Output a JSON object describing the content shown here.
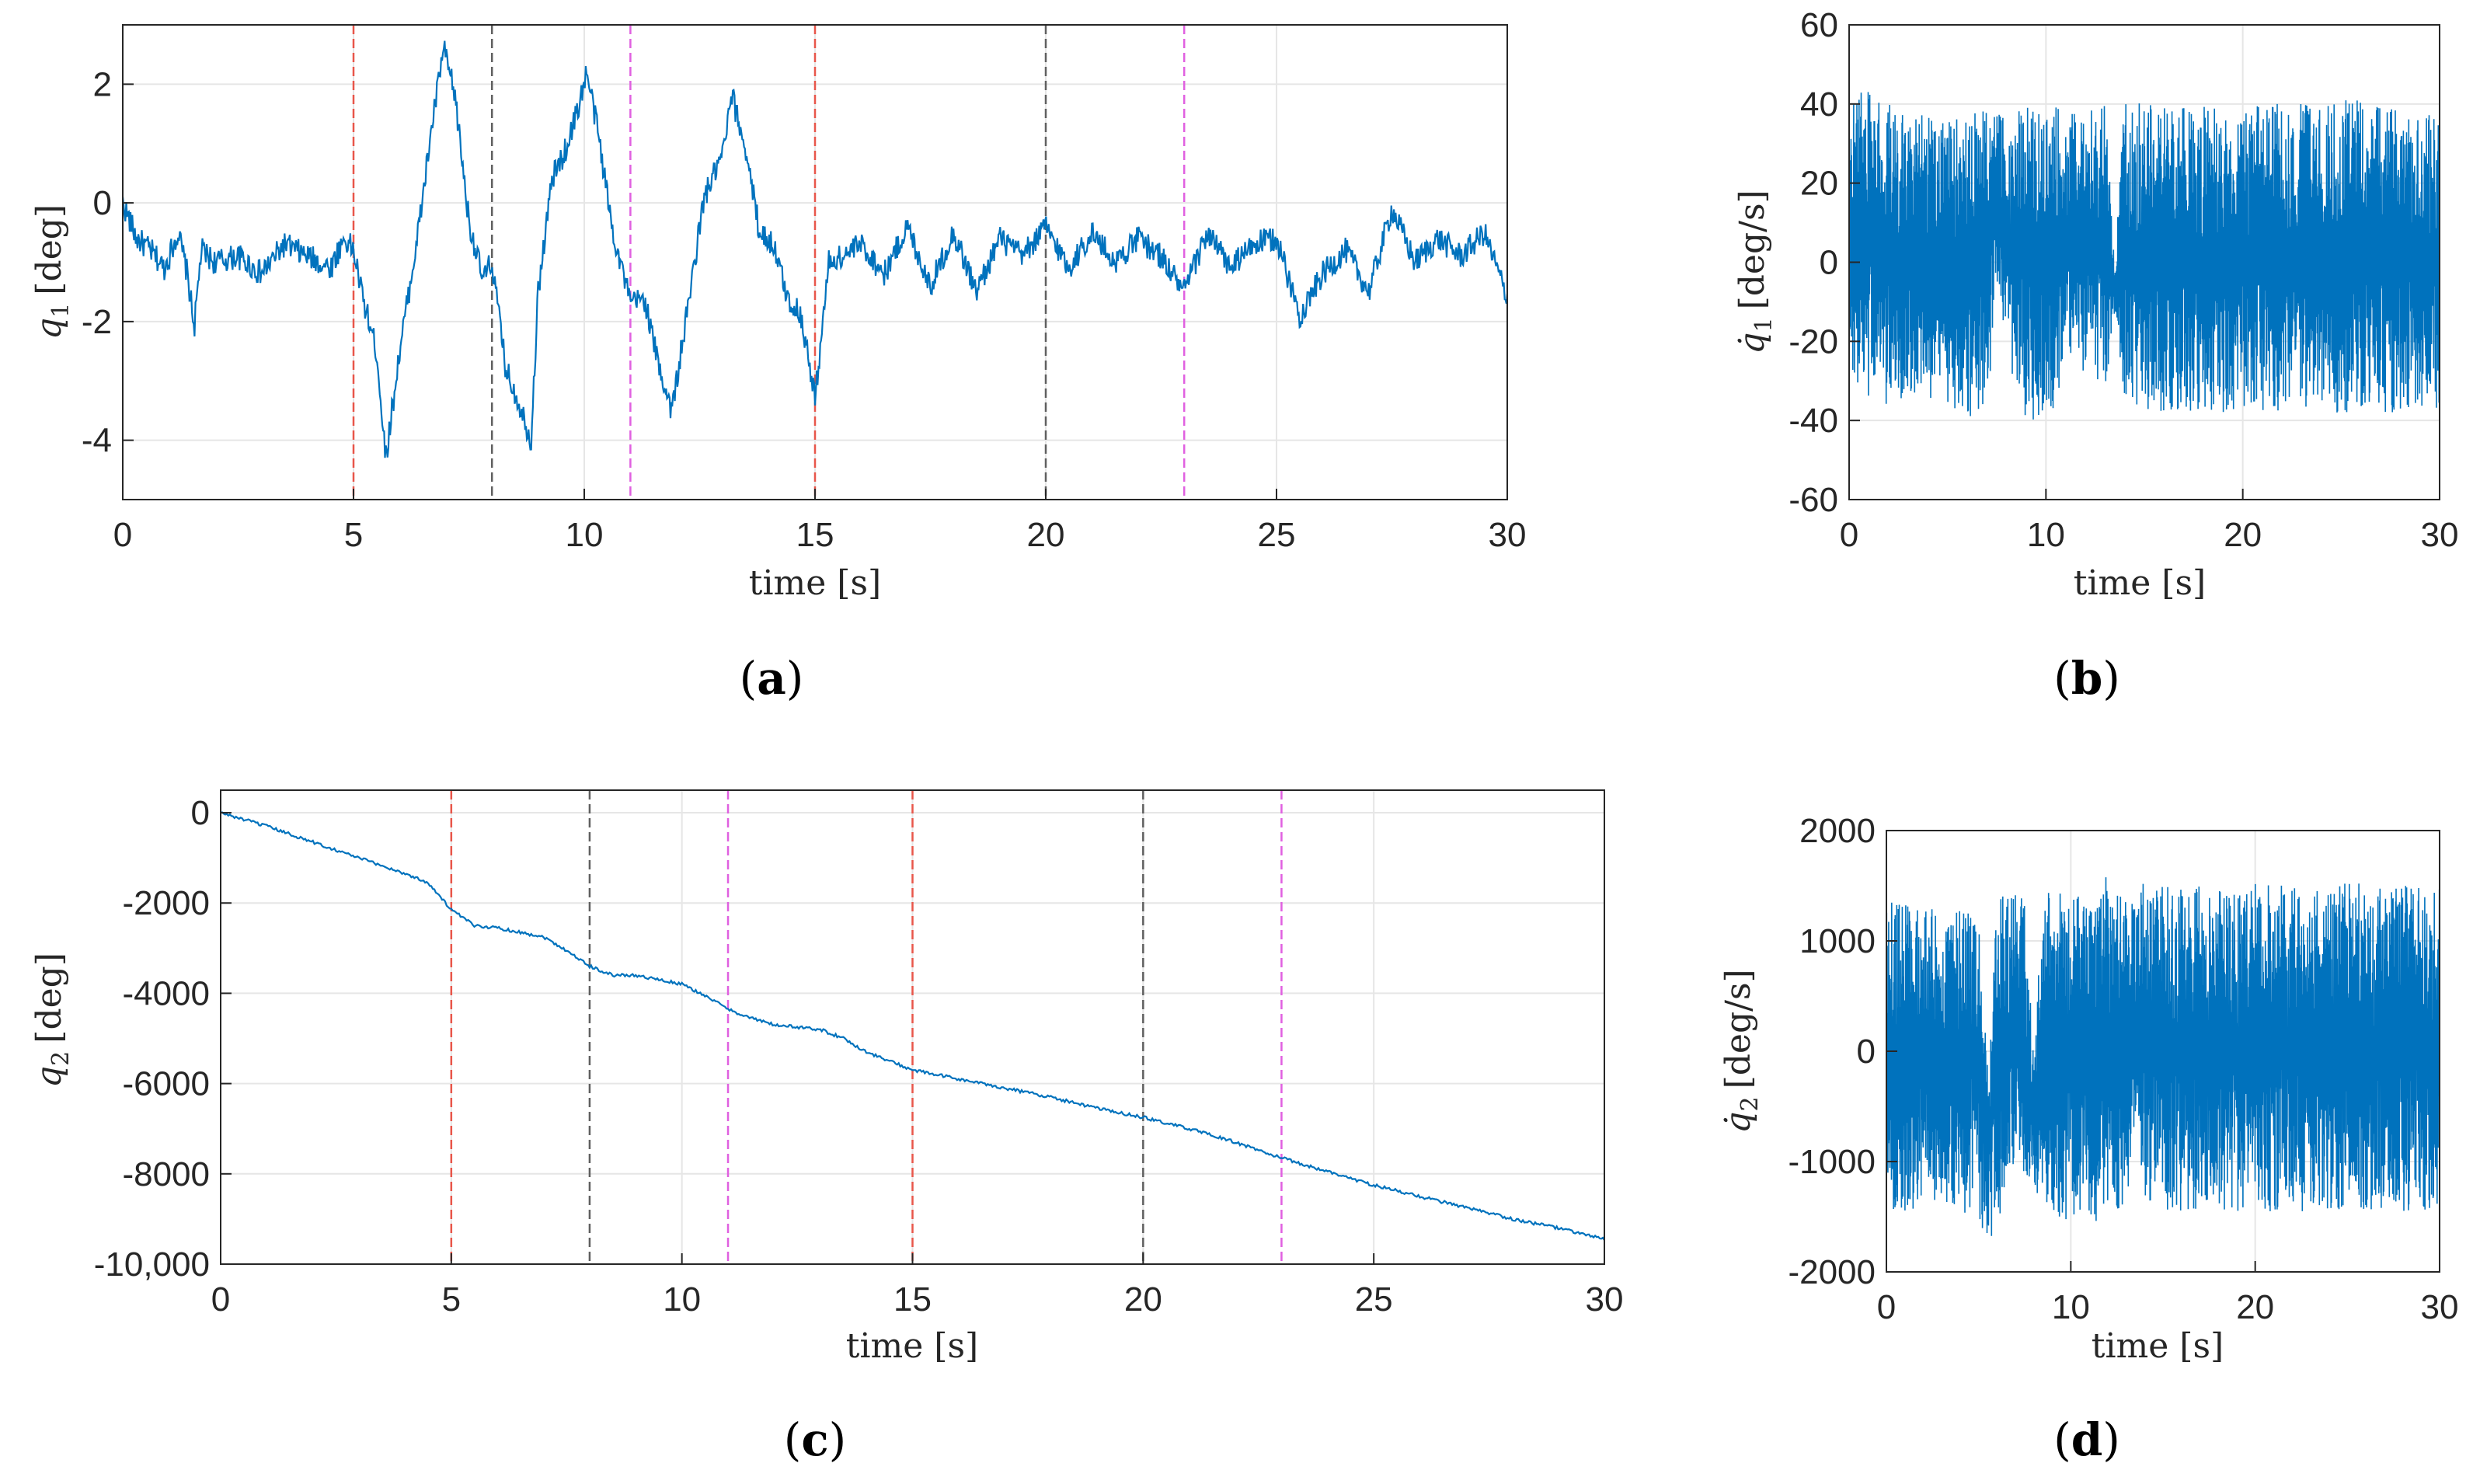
{
  "chart_data": [
    {
      "panel": "(a)",
      "panel_letter": "a",
      "type": "line",
      "xlabel": "time [s]",
      "ylabel": "q1 [deg]",
      "ylabel_main": "q",
      "ylabel_sub": "1",
      "ylabel_unit": "[deg]",
      "xlim": [
        0,
        30
      ],
      "ylim": [
        -5,
        3
      ],
      "xticks": [
        0,
        5,
        10,
        15,
        20,
        25,
        30
      ],
      "yticks": [
        -4,
        -2,
        0,
        2
      ],
      "ytick_labels": [
        "-4",
        "-2",
        "0",
        "2"
      ],
      "grid": true,
      "vlines": [
        {
          "x": 5,
          "color": "#e8564a"
        },
        {
          "x": 8,
          "color": "#606060"
        },
        {
          "x": 11,
          "color": "#e060e0"
        },
        {
          "x": 15,
          "color": "#e8564a"
        },
        {
          "x": 20,
          "color": "#606060"
        },
        {
          "x": 23,
          "color": "#e060e0"
        }
      ],
      "series": [
        {
          "color": "#0072bd",
          "x": [
            0,
            0.3,
            0.6,
            0.9,
            1.2,
            1.4,
            1.55,
            1.7,
            2.0,
            2.5,
            3.0,
            3.5,
            4.0,
            4.5,
            4.8,
            5.0,
            5.2,
            5.5,
            5.7,
            6.0,
            6.4,
            6.7,
            6.95,
            7.2,
            7.5,
            7.8,
            8.0,
            8.3,
            8.6,
            8.85,
            9.0,
            9.3,
            9.6,
            9.9,
            10.05,
            10.3,
            10.6,
            11.0,
            11.3,
            11.6,
            11.9,
            12.2,
            12.6,
            13.0,
            13.2,
            13.5,
            13.8,
            14.1,
            14.4,
            14.7,
            15.0,
            15.3,
            15.6,
            16.0,
            16.5,
            17.0,
            17.5,
            18.0,
            18.5,
            19.0,
            19.5,
            20.0,
            20.5,
            21.0,
            21.5,
            22.0,
            22.5,
            23.0,
            23.5,
            24.0,
            24.5,
            25.0,
            25.5,
            26.0,
            26.5,
            27.0,
            27.5,
            28.0,
            28.5,
            29.0,
            29.5,
            30.0
          ],
          "y": [
            0,
            -0.6,
            -0.8,
            -1.1,
            -0.5,
            -1.2,
            -2.1,
            -0.8,
            -1.0,
            -0.9,
            -1.2,
            -0.7,
            -0.9,
            -1.1,
            -0.6,
            -0.8,
            -1.6,
            -2.5,
            -4.3,
            -2.5,
            -0.5,
            1.3,
            2.6,
            1.8,
            -0.3,
            -1.3,
            -1.0,
            -2.8,
            -3.4,
            -4.0,
            -1.5,
            0.4,
            0.9,
            1.7,
            2.2,
            1.2,
            -0.4,
            -1.7,
            -1.6,
            -2.7,
            -3.5,
            -2.0,
            0.1,
            0.8,
            1.8,
            0.9,
            -0.5,
            -0.7,
            -1.6,
            -1.9,
            -3.3,
            -1.0,
            -0.9,
            -0.7,
            -1.2,
            -0.4,
            -1.4,
            -0.5,
            -1.5,
            -0.6,
            -0.9,
            -0.4,
            -1.1,
            -0.5,
            -1.0,
            -0.6,
            -0.9,
            -1.5,
            -0.5,
            -1.1,
            -0.7,
            -0.6,
            -1.9,
            -1.2,
            -0.8,
            -1.5,
            -0.1,
            -1.0,
            -0.6,
            -0.9,
            -0.5,
            -1.6
          ]
        }
      ]
    },
    {
      "panel": "(b)",
      "panel_letter": "b",
      "type": "line",
      "xlabel": "time [s]",
      "ylabel": "q̇1 [deg/s]",
      "ylabel_main": "q̇",
      "ylabel_sub": "1",
      "ylabel_unit": "[deg/s]",
      "xlim": [
        0,
        30
      ],
      "ylim": [
        -60,
        60
      ],
      "xticks": [
        0,
        10,
        20,
        30
      ],
      "yticks": [
        -60,
        -40,
        -20,
        0,
        20,
        40,
        60
      ],
      "ytick_labels": [
        "-60",
        "-40",
        "-20",
        "0",
        "20",
        "40",
        "60"
      ],
      "grid": true,
      "series": [
        {
          "color": "#0072bd",
          "envelope_x": [
            0,
            1,
            2,
            3,
            4,
            5,
            6,
            7,
            7.5,
            8,
            8.5,
            9,
            9.5,
            10,
            10.5,
            11,
            12,
            13,
            13.5,
            14,
            15,
            16,
            18,
            20,
            22,
            24,
            26,
            28,
            30
          ],
          "envelope_max": [
            40,
            45,
            42,
            38,
            37,
            36,
            38,
            40,
            38,
            36,
            38,
            40,
            38,
            36,
            40,
            38,
            38,
            40,
            0,
            42,
            40,
            40,
            40,
            40,
            40,
            40,
            42,
            38,
            38
          ],
          "envelope_min": [
            -33,
            -36,
            -36,
            -34,
            -34,
            -36,
            -40,
            -36,
            -15,
            -20,
            -35,
            -40,
            -42,
            -35,
            -38,
            -25,
            -28,
            -32,
            -15,
            -34,
            -38,
            -38,
            -38,
            -38,
            -38,
            -38,
            -38,
            -38,
            -38
          ]
        }
      ]
    },
    {
      "panel": "(c)",
      "panel_letter": "c",
      "type": "line",
      "xlabel": "time [s]",
      "ylabel": "q2 [deg]",
      "ylabel_main": "q",
      "ylabel_sub": "2",
      "ylabel_unit": "[deg]",
      "xlim": [
        0,
        30
      ],
      "ylim": [
        -10000,
        500
      ],
      "xticks": [
        0,
        5,
        10,
        15,
        20,
        25,
        30
      ],
      "yticks": [
        -10000,
        -8000,
        -6000,
        -4000,
        -2000,
        0
      ],
      "ytick_labels": [
        "-10,000",
        "-8000",
        "-6000",
        "-4000",
        "-2000",
        "0"
      ],
      "grid": true,
      "vlines": [
        {
          "x": 5,
          "color": "#e8564a"
        },
        {
          "x": 8,
          "color": "#606060"
        },
        {
          "x": 11,
          "color": "#e060e0"
        },
        {
          "x": 15,
          "color": "#e8564a"
        },
        {
          "x": 20,
          "color": "#606060"
        },
        {
          "x": 23,
          "color": "#e060e0"
        }
      ],
      "series": [
        {
          "color": "#0072bd",
          "x": [
            0,
            1,
            2,
            3,
            4,
            4.5,
            5,
            5.5,
            6,
            7,
            7.5,
            8,
            8.5,
            9,
            10,
            10.5,
            11,
            11.5,
            12,
            13,
            13.5,
            14,
            15,
            16,
            17,
            18,
            19,
            20,
            21,
            22,
            23,
            24,
            25,
            26,
            27,
            28,
            29,
            30
          ],
          "y": [
            0,
            -300,
            -650,
            -1000,
            -1350,
            -1550,
            -2150,
            -2500,
            -2550,
            -2750,
            -3050,
            -3400,
            -3600,
            -3600,
            -3800,
            -4050,
            -4350,
            -4550,
            -4700,
            -4800,
            -5000,
            -5300,
            -5700,
            -5900,
            -6100,
            -6300,
            -6550,
            -6750,
            -7000,
            -7300,
            -7650,
            -7950,
            -8250,
            -8500,
            -8750,
            -9000,
            -9200,
            -9450
          ]
        }
      ]
    },
    {
      "panel": "(d)",
      "panel_letter": "d",
      "type": "line",
      "xlabel": "time [s]",
      "ylabel": "q̇2 [deg/s]",
      "ylabel_main": "q̇",
      "ylabel_sub": "2",
      "ylabel_unit": "[deg/s]",
      "xlim": [
        0,
        30
      ],
      "ylim": [
        -2000,
        2000
      ],
      "xticks": [
        0,
        10,
        20,
        30
      ],
      "yticks": [
        -2000,
        -1000,
        0,
        1000,
        2000
      ],
      "ytick_labels": [
        "-2000",
        "-1000",
        "0",
        "1000",
        "2000"
      ],
      "grid": true,
      "series": [
        {
          "color": "#0072bd",
          "envelope_x": [
            0,
            1,
            2,
            3,
            4,
            5,
            5.5,
            6,
            7,
            7.5,
            8,
            8.5,
            9,
            10,
            10.5,
            11,
            12,
            13,
            13.5,
            14,
            15,
            18,
            20,
            22,
            24,
            26,
            28,
            30
          ],
          "envelope_max": [
            1400,
            1350,
            1300,
            1300,
            1300,
            1250,
            -200,
            1400,
            1450,
            1400,
            -100,
            1500,
            1550,
            1400,
            1500,
            1450,
            1600,
            1400,
            1350,
            1550,
            1500,
            1500,
            1550,
            1500,
            1500,
            1550,
            1500,
            1500
          ],
          "envelope_min": [
            -1450,
            -1450,
            -1400,
            -1400,
            -1450,
            -1500,
            -1750,
            -1600,
            -1000,
            -1100,
            -1350,
            -1450,
            -1500,
            -1550,
            -1450,
            -1550,
            -1550,
            -1400,
            -900,
            -1350,
            -1450,
            -1450,
            -1450,
            -1450,
            -1450,
            -1450,
            -1450,
            -1450
          ]
        }
      ]
    }
  ]
}
